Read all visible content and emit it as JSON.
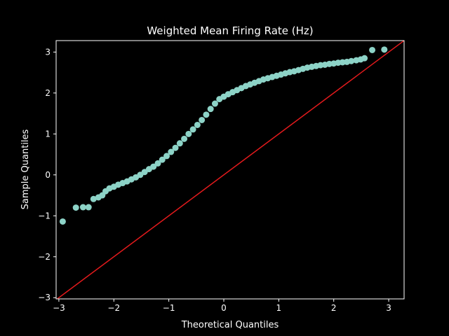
{
  "chart_data": {
    "type": "scatter",
    "title": "Weighted Mean Firing Rate (Hz)",
    "xlabel": "Theoretical Quantiles",
    "ylabel": "Sample Quantiles",
    "xlim": [
      -3.05,
      3.28
    ],
    "ylim": [
      -3.03,
      3.28
    ],
    "xticks": [
      -3,
      -2,
      -1,
      0,
      1,
      2,
      3
    ],
    "yticks": [
      -3,
      -2,
      -1,
      0,
      1,
      2,
      3
    ],
    "xtick_labels": [
      "−3",
      "−2",
      "−1",
      "0",
      "1",
      "2",
      "3"
    ],
    "ytick_labels": [
      "−3",
      "−2",
      "−1",
      "0",
      "1",
      "2",
      "3"
    ],
    "grid": false,
    "reference_line": {
      "type": "45-degree",
      "color": "#e41a1c"
    },
    "series": [
      {
        "color": "#8dd3c7",
        "points": [
          [
            -2.93,
            -1.14
          ],
          [
            -2.69,
            -0.8
          ],
          [
            -2.56,
            -0.79
          ],
          [
            -2.46,
            -0.79
          ],
          [
            -2.37,
            -0.59
          ],
          [
            -2.28,
            -0.55
          ],
          [
            -2.21,
            -0.5
          ],
          [
            -2.15,
            -0.4
          ],
          [
            -2.08,
            -0.33
          ],
          [
            -2.0,
            -0.29
          ],
          [
            -1.92,
            -0.24
          ],
          [
            -1.84,
            -0.2
          ],
          [
            -1.76,
            -0.16
          ],
          [
            -1.68,
            -0.11
          ],
          [
            -1.6,
            -0.06
          ],
          [
            -1.52,
            0.0
          ],
          [
            -1.44,
            0.07
          ],
          [
            -1.36,
            0.14
          ],
          [
            -1.28,
            0.2
          ],
          [
            -1.2,
            0.28
          ],
          [
            -1.12,
            0.37
          ],
          [
            -1.04,
            0.46
          ],
          [
            -0.96,
            0.56
          ],
          [
            -0.88,
            0.66
          ],
          [
            -0.8,
            0.77
          ],
          [
            -0.72,
            0.88
          ],
          [
            -0.64,
            1.0
          ],
          [
            -0.56,
            1.11
          ],
          [
            -0.48,
            1.22
          ],
          [
            -0.4,
            1.34
          ],
          [
            -0.32,
            1.47
          ],
          [
            -0.24,
            1.61
          ],
          [
            -0.16,
            1.74
          ],
          [
            -0.08,
            1.85
          ],
          [
            0.0,
            1.91
          ],
          [
            0.08,
            1.97
          ],
          [
            0.16,
            2.02
          ],
          [
            0.24,
            2.07
          ],
          [
            0.32,
            2.12
          ],
          [
            0.4,
            2.17
          ],
          [
            0.48,
            2.21
          ],
          [
            0.56,
            2.25
          ],
          [
            0.64,
            2.29
          ],
          [
            0.72,
            2.33
          ],
          [
            0.8,
            2.36
          ],
          [
            0.88,
            2.39
          ],
          [
            0.96,
            2.42
          ],
          [
            1.04,
            2.45
          ],
          [
            1.12,
            2.48
          ],
          [
            1.2,
            2.51
          ],
          [
            1.28,
            2.53
          ],
          [
            1.36,
            2.56
          ],
          [
            1.44,
            2.59
          ],
          [
            1.52,
            2.62
          ],
          [
            1.6,
            2.64
          ],
          [
            1.68,
            2.66
          ],
          [
            1.76,
            2.68
          ],
          [
            1.84,
            2.69
          ],
          [
            1.92,
            2.71
          ],
          [
            2.0,
            2.72
          ],
          [
            2.08,
            2.74
          ],
          [
            2.16,
            2.75
          ],
          [
            2.24,
            2.76
          ],
          [
            2.32,
            2.78
          ],
          [
            2.41,
            2.8
          ],
          [
            2.49,
            2.82
          ],
          [
            2.56,
            2.85
          ],
          [
            2.7,
            3.05
          ],
          [
            2.92,
            3.06
          ]
        ]
      }
    ]
  }
}
